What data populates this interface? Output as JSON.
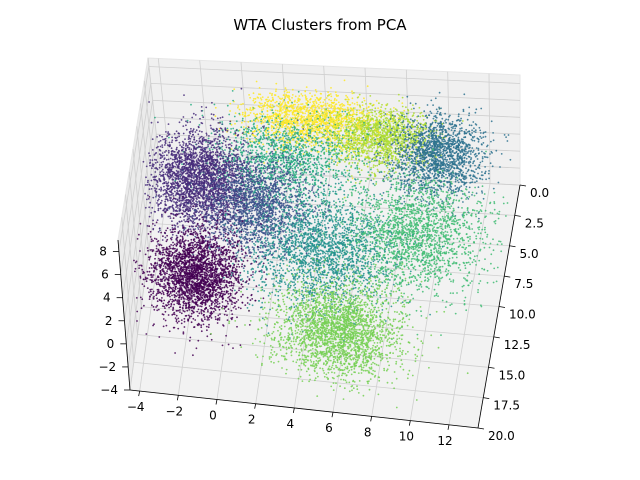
{
  "chart_data": {
    "type": "scatter",
    "projection": "3d",
    "title": "WTA Clusters from PCA",
    "xlabel": "",
    "ylabel": "",
    "zlabel": "",
    "grid": true,
    "x_ticks": [
      "−4",
      "−2",
      "0",
      "2",
      "4",
      "6",
      "8",
      "10",
      "12"
    ],
    "y_ticks": [
      "0.0",
      "2.5",
      "5.0",
      "7.5",
      "10.0",
      "12.5",
      "15.0",
      "17.5",
      "20.0"
    ],
    "z_ticks": [
      "8",
      "6",
      "4",
      "2",
      "0",
      "−2",
      "−4"
    ],
    "xlim": [
      -4.5,
      13.5
    ],
    "ylim": [
      0,
      20
    ],
    "zlim": [
      -4,
      9
    ],
    "colormap": "viridis",
    "series": [
      {
        "color": "#440154",
        "center": [
          -1.5,
          13.0,
          0.0
        ],
        "spread": [
          1.2,
          1.6,
          1.5
        ],
        "count": 2600
      },
      {
        "color": "#472c7a",
        "center": [
          -2.0,
          5.0,
          1.0
        ],
        "spread": [
          1.2,
          1.8,
          1.8
        ],
        "count": 2600
      },
      {
        "color": "#3b518b",
        "center": [
          1.0,
          6.5,
          0.5
        ],
        "spread": [
          1.3,
          1.8,
          1.6
        ],
        "count": 1800
      },
      {
        "color": "#2c718e",
        "center": [
          9.5,
          1.0,
          0.5
        ],
        "spread": [
          1.2,
          1.5,
          1.5
        ],
        "count": 1800
      },
      {
        "color": "#21908d",
        "center": [
          4.5,
          10.0,
          0.0
        ],
        "spread": [
          1.8,
          2.2,
          1.6
        ],
        "count": 2000
      },
      {
        "color": "#27ad81",
        "center": [
          2.0,
          2.0,
          0.5
        ],
        "spread": [
          1.8,
          1.8,
          1.5
        ],
        "count": 1400
      },
      {
        "color": "#3fbc73",
        "center": [
          9.0,
          8.0,
          0.0
        ],
        "spread": [
          1.8,
          2.2,
          1.6
        ],
        "count": 2000
      },
      {
        "color": "#75d054",
        "center": [
          6.0,
          17.0,
          0.0
        ],
        "spread": [
          1.6,
          1.8,
          1.4
        ],
        "count": 2600
      },
      {
        "color": "#addc30",
        "center": [
          6.5,
          -0.5,
          0.5
        ],
        "spread": [
          1.3,
          1.2,
          1.3
        ],
        "count": 1600
      },
      {
        "color": "#fde725",
        "center": [
          3.0,
          -1.5,
          1.5
        ],
        "spread": [
          1.6,
          1.2,
          1.3
        ],
        "count": 2200
      }
    ]
  }
}
